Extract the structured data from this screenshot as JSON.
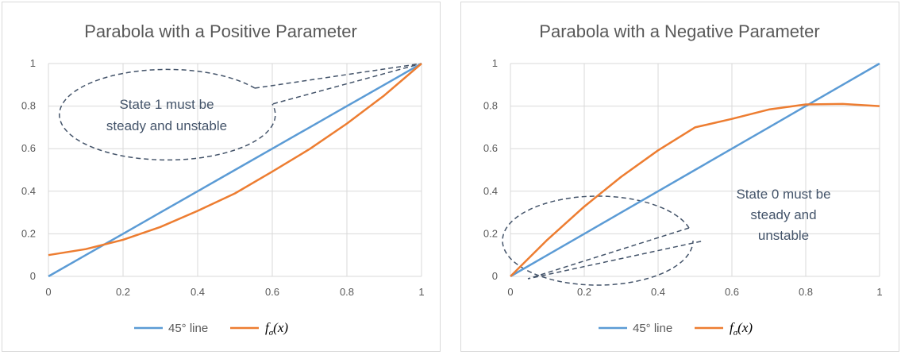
{
  "colors": {
    "line45": "#5b9bd5",
    "fsigma": "#ed7d31",
    "callout": "#44546a"
  },
  "legend": {
    "line45_label": "45° line",
    "fsigma_f": "f",
    "fsigma_sub": "σ",
    "fsigma_arg": "(x)"
  },
  "chart_data": [
    {
      "type": "line",
      "title": "Parabola with a  Positive Parameter",
      "xlabel": "",
      "ylabel": "",
      "xlim": [
        0,
        1
      ],
      "ylim": [
        0,
        1
      ],
      "x_ticks": [
        "0",
        "0.2",
        "0.4",
        "0.6",
        "0.8",
        "1"
      ],
      "y_ticks": [
        "0",
        "0.2",
        "0.4",
        "0.6",
        "0.8",
        "1"
      ],
      "grid": true,
      "legend_position": "bottom",
      "series": [
        {
          "name": "45° line",
          "x": [
            0,
            0.1,
            0.2,
            0.3,
            0.4,
            0.5,
            0.6,
            0.7,
            0.8,
            0.9,
            1.0
          ],
          "y": [
            0,
            0.1,
            0.2,
            0.3,
            0.4,
            0.5,
            0.6,
            0.7,
            0.8,
            0.9,
            1.0
          ]
        },
        {
          "name": "fσ(x)",
          "x": [
            0,
            0.1,
            0.2,
            0.3,
            0.4,
            0.5,
            0.6,
            0.7,
            0.8,
            0.9,
            1.0
          ],
          "y": [
            0.1,
            0.128,
            0.172,
            0.232,
            0.308,
            0.39,
            0.492,
            0.598,
            0.718,
            0.85,
            1.0
          ]
        }
      ],
      "annotation": {
        "lines": [
          "State 1 must be",
          "steady and unstable"
        ]
      }
    },
    {
      "type": "line",
      "title": "Parabola with a  Negative Parameter",
      "xlabel": "",
      "ylabel": "",
      "xlim": [
        0,
        1
      ],
      "ylim": [
        0,
        1
      ],
      "x_ticks": [
        "0",
        "0.2",
        "0.4",
        "0.6",
        "0.8",
        "1"
      ],
      "y_ticks": [
        "0",
        "0.2",
        "0.4",
        "0.6",
        "0.8",
        "1"
      ],
      "grid": true,
      "legend_position": "bottom",
      "series": [
        {
          "name": "45° line",
          "x": [
            0,
            0.1,
            0.2,
            0.3,
            0.4,
            0.5,
            0.6,
            0.7,
            0.8,
            0.9,
            1.0
          ],
          "y": [
            0,
            0.1,
            0.2,
            0.3,
            0.4,
            0.5,
            0.6,
            0.7,
            0.8,
            0.9,
            1.0
          ]
        },
        {
          "name": "fσ(x)",
          "x": [
            0,
            0.1,
            0.2,
            0.3,
            0.4,
            0.5,
            0.6,
            0.7,
            0.8,
            0.9,
            1.0
          ],
          "y": [
            0,
            0.172,
            0.328,
            0.468,
            0.592,
            0.7,
            0.74,
            0.784,
            0.808,
            0.81,
            0.8
          ]
        }
      ],
      "annotation": {
        "lines": [
          "State 0 must be",
          "steady and",
          "unstable"
        ]
      }
    }
  ]
}
